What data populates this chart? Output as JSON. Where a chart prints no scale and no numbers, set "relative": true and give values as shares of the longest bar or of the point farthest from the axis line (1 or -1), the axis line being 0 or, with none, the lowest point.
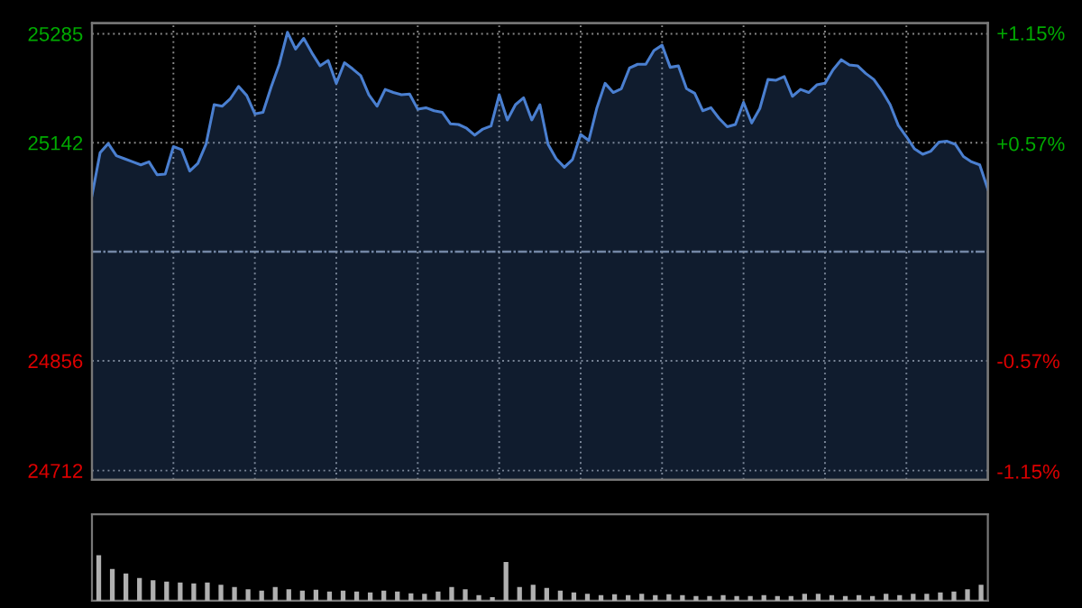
{
  "chart_data": [
    {
      "type": "area",
      "categories": [
        null,
        null,
        null,
        null,
        null,
        null,
        null,
        null,
        null,
        null,
        null,
        null,
        null,
        null,
        null,
        null,
        null,
        null,
        null,
        null,
        null,
        null,
        null,
        null,
        null,
        null,
        null,
        null,
        null,
        null,
        null,
        null,
        null,
        null,
        null,
        null,
        null,
        null,
        null,
        null,
        null,
        null,
        null,
        null,
        null,
        null,
        null,
        null,
        null,
        null,
        null,
        null,
        null,
        null,
        null,
        null,
        null,
        null,
        null,
        null,
        null,
        null,
        null,
        null,
        null,
        null,
        null,
        null,
        null,
        null,
        null,
        null,
        null,
        null,
        null,
        null,
        null,
        null,
        null,
        null,
        null,
        null,
        null,
        null,
        null,
        null,
        null,
        null,
        null,
        null,
        null,
        null,
        null,
        null,
        null,
        null,
        null,
        null,
        null,
        null,
        null,
        null,
        null,
        null,
        null,
        null,
        null,
        null,
        null,
        null,
        null
      ],
      "series": [
        {
          "color": "#4a7fd0",
          "values": [
            25073,
            25129,
            25141,
            25125,
            25121,
            25117,
            25113,
            25117,
            25100,
            25101,
            25137,
            25133,
            25105,
            25115,
            25140,
            25192,
            25190,
            25200,
            25216,
            25204,
            25180,
            25182,
            25215,
            25245,
            25287,
            25265,
            25279,
            25260,
            25243,
            25250,
            25220,
            25247,
            25239,
            25230,
            25205,
            25190,
            25212,
            25208,
            25205,
            25206,
            25186,
            25188,
            25184,
            25182,
            25167,
            25166,
            25161,
            25152,
            25160,
            25164,
            25205,
            25172,
            25192,
            25201,
            25172,
            25192,
            25140,
            25121,
            25110,
            25120,
            25153,
            25145,
            25188,
            25220,
            25208,
            25213,
            25240,
            25245,
            25245,
            25263,
            25270,
            25241,
            25243,
            25213,
            25207,
            25184,
            25188,
            25174,
            25163,
            25166,
            25195,
            25168,
            25187,
            25225,
            25224,
            25229,
            25203,
            25212,
            25208,
            25218,
            25220,
            25238,
            25251,
            25244,
            25243,
            25233,
            25225,
            25210,
            25192,
            25165,
            25150,
            25134,
            25127,
            25131,
            25143,
            25144,
            25140,
            25124,
            25117,
            25113,
            25081
          ]
        }
      ],
      "ylim": [
        24700,
        25299
      ],
      "yticks": [
        24712,
        24856,
        25142,
        25285
      ],
      "y2lim": [
        -1.194,
        1.202
      ],
      "y2ticks": [
        {
          "value": -1.15,
          "label": "-1.15%"
        },
        {
          "value": -0.57,
          "label": "-0.57%"
        },
        {
          "value": 0.57,
          "label": "+0.57%"
        },
        {
          "value": 1.15,
          "label": "+1.15%"
        }
      ],
      "ref_lines": [
        {
          "axis": "y",
          "value": 24999,
          "color": "#7f8a99",
          "line_style": "dashdot"
        }
      ],
      "grid": true,
      "tick_labels": "y"
    },
    {
      "type": "bar",
      "relative": true,
      "color": "#b0b0b0",
      "categories": [
        null,
        null,
        null,
        null,
        null,
        null,
        null,
        null,
        null,
        null,
        null,
        null,
        null,
        null,
        null,
        null,
        null,
        null,
        null,
        null,
        null,
        null,
        null,
        null,
        null,
        null,
        null,
        null,
        null,
        null,
        null,
        null,
        null,
        null,
        null,
        null,
        null,
        null,
        null,
        null,
        null,
        null,
        null,
        null,
        null,
        null,
        null,
        null,
        null,
        null,
        null,
        null,
        null,
        null,
        null,
        null,
        null,
        null,
        null,
        null,
        null,
        null,
        null,
        null,
        null,
        null
      ],
      "values": [
        1.0,
        0.7,
        0.6,
        0.5,
        0.45,
        0.42,
        0.4,
        0.38,
        0.4,
        0.35,
        0.3,
        0.25,
        0.22,
        0.3,
        0.25,
        0.22,
        0.24,
        0.2,
        0.22,
        0.2,
        0.18,
        0.22,
        0.2,
        0.16,
        0.15,
        0.2,
        0.3,
        0.25,
        0.12,
        0.08,
        0.85,
        0.3,
        0.35,
        0.28,
        0.22,
        0.18,
        0.15,
        0.12,
        0.14,
        0.12,
        0.15,
        0.12,
        0.14,
        0.12,
        0.1,
        0.1,
        0.12,
        0.1,
        0.1,
        0.12,
        0.1,
        0.1,
        0.15,
        0.15,
        0.12,
        0.1,
        0.12,
        0.1,
        0.15,
        0.12,
        0.15,
        0.15,
        0.18,
        0.2,
        0.25,
        0.35
      ]
    }
  ]
}
